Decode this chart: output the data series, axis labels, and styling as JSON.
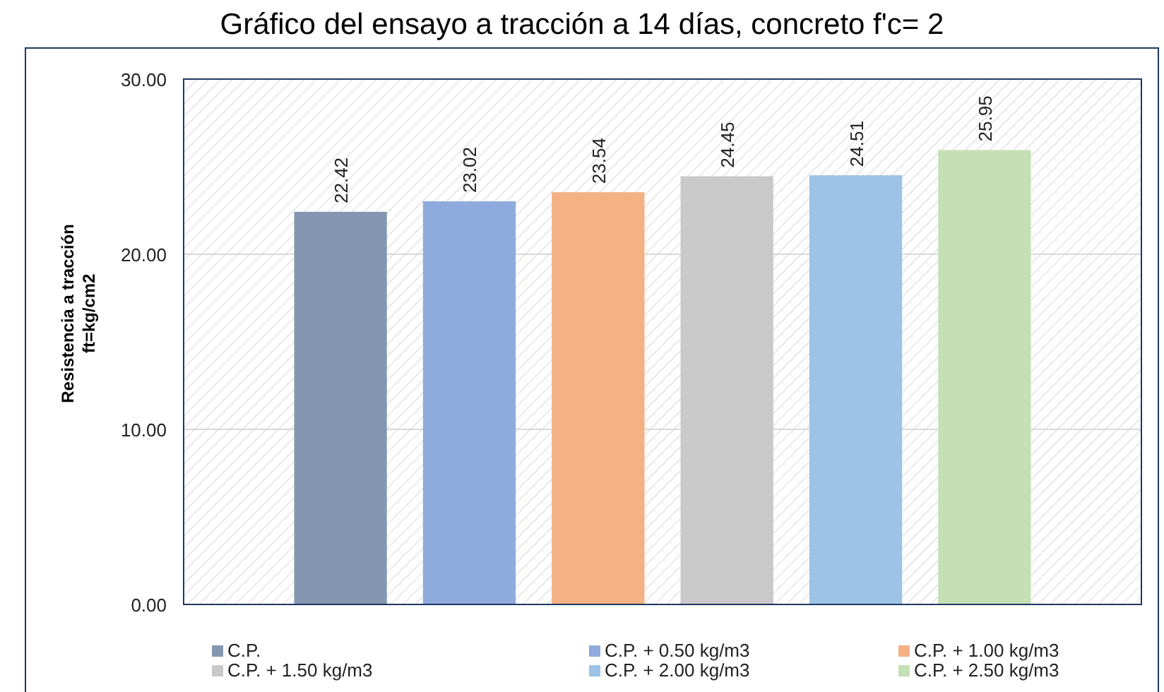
{
  "chart_data": {
    "type": "bar",
    "title": "Gráfico del ensayo a tracción a 14 días, concreto f'c= 2",
    "ylabel": "Resistencia a tracción\nft=kg/cm2",
    "categories": [
      null
    ],
    "series": [
      {
        "name": "C.P.",
        "color": "#8497b0",
        "values": [
          22.42
        ]
      },
      {
        "name": "C.P. + 0.50 kg/m3",
        "color": "#8faadc",
        "values": [
          23.02
        ]
      },
      {
        "name": "C.P. + 1.00 kg/m3",
        "color": "#f4b183",
        "values": [
          23.54
        ]
      },
      {
        "name": "C.P. + 1.50 kg/m3",
        "color": "#c9c9c9",
        "values": [
          24.45
        ]
      },
      {
        "name": "C.P. + 2.00 kg/m3",
        "color": "#9dc3e6",
        "values": [
          24.51
        ]
      },
      {
        "name": "C.P. + 2.50 kg/m3",
        "color": "#c5e0b4",
        "values": [
          25.95
        ]
      }
    ],
    "ylim": [
      0,
      30
    ],
    "yticks": [
      {
        "value": 0,
        "label": "0.00"
      },
      {
        "value": 10,
        "label": "10.00"
      },
      {
        "value": 20,
        "label": "20.00"
      },
      {
        "value": 30,
        "label": "30.00"
      }
    ],
    "grid": "y",
    "legend": "bottom",
    "data_labels": true
  }
}
